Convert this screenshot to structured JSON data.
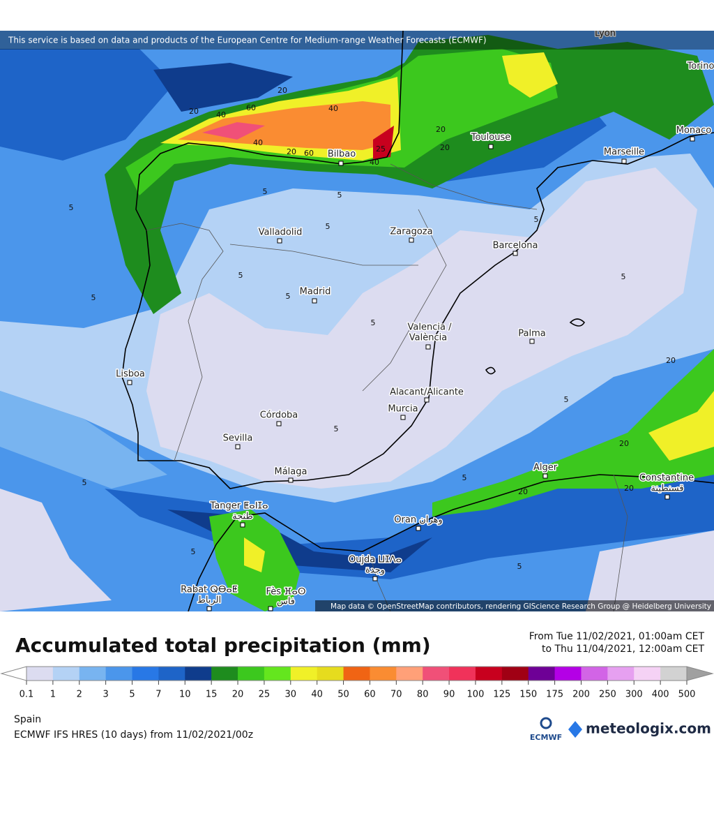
{
  "map": {
    "attribution_top": "This service is based on data and products of the European Centre for Medium-range Weather Forecasts (ECMWF)",
    "attribution_bottom": "Map data © OpenStreetMap contributors, rendering GIScience Research Group @ Heidelberg University",
    "places": [
      "Lyon",
      "Torino",
      "Monaco",
      "Marseille",
      "Toulouse",
      "Bilbao",
      "Zaragoza",
      "Barcelona",
      "Valladolid",
      "Madrid",
      "Valencia /",
      "València",
      "Palma",
      "Lisboa",
      "Alacant/Alicante",
      "Murcia",
      "Córdoba",
      "Sevilla",
      "Málaga",
      "Alger",
      "Constantine",
      "قسنطينة",
      "Tanger ⵟⴰⵏⵊⴰ",
      "طنجة",
      "Oran وهران",
      "Oujda ⵡⵊⴷⴰ",
      "وجدة",
      "Rabat ⵕⴱⴰⵟ",
      "الرباط",
      "Fès ⴼⴰⵙ",
      "فاس"
    ],
    "contour_labels": [
      20,
      40,
      60,
      20,
      40,
      20,
      20,
      40,
      20,
      60,
      25,
      40,
      5,
      5,
      5,
      5,
      5,
      5,
      5,
      5,
      5,
      5,
      5,
      5,
      5,
      20,
      20,
      20,
      20,
      5,
      5,
      5
    ]
  },
  "title": "Accumulated total precipitation (mm)",
  "period_from": "From Tue 11/02/2021, 01:00am CET",
  "period_to": "to Thu 11/04/2021, 12:00am CET",
  "legend": {
    "ticks": [
      0.1,
      1,
      2,
      3,
      5,
      7,
      10,
      15,
      20,
      25,
      30,
      40,
      50,
      60,
      70,
      80,
      90,
      100,
      125,
      150,
      175,
      200,
      250,
      300,
      400,
      500
    ],
    "colors": [
      "#dcdcf0",
      "#b4d2f5",
      "#78b4f0",
      "#4b96eb",
      "#2878e6",
      "#1e64c8",
      "#0f3c8c",
      "#1e8c1e",
      "#3cc81e",
      "#64e61e",
      "#f0f028",
      "#e6dc1e",
      "#f06414",
      "#fa8c32",
      "#ffa078",
      "#f05078",
      "#f0325a",
      "#c8001e",
      "#a00014",
      "#6e0096",
      "#b400e6",
      "#d264e6",
      "#e6a0f0",
      "#f5d2f5",
      "#d2d2d2"
    ]
  },
  "region": "Spain",
  "model": "ECMWF IFS HRES (10 days) from 11/02/2021/00z",
  "logo_ecmwf": "ECMWF",
  "logo_meteologix": "meteologix.com"
}
